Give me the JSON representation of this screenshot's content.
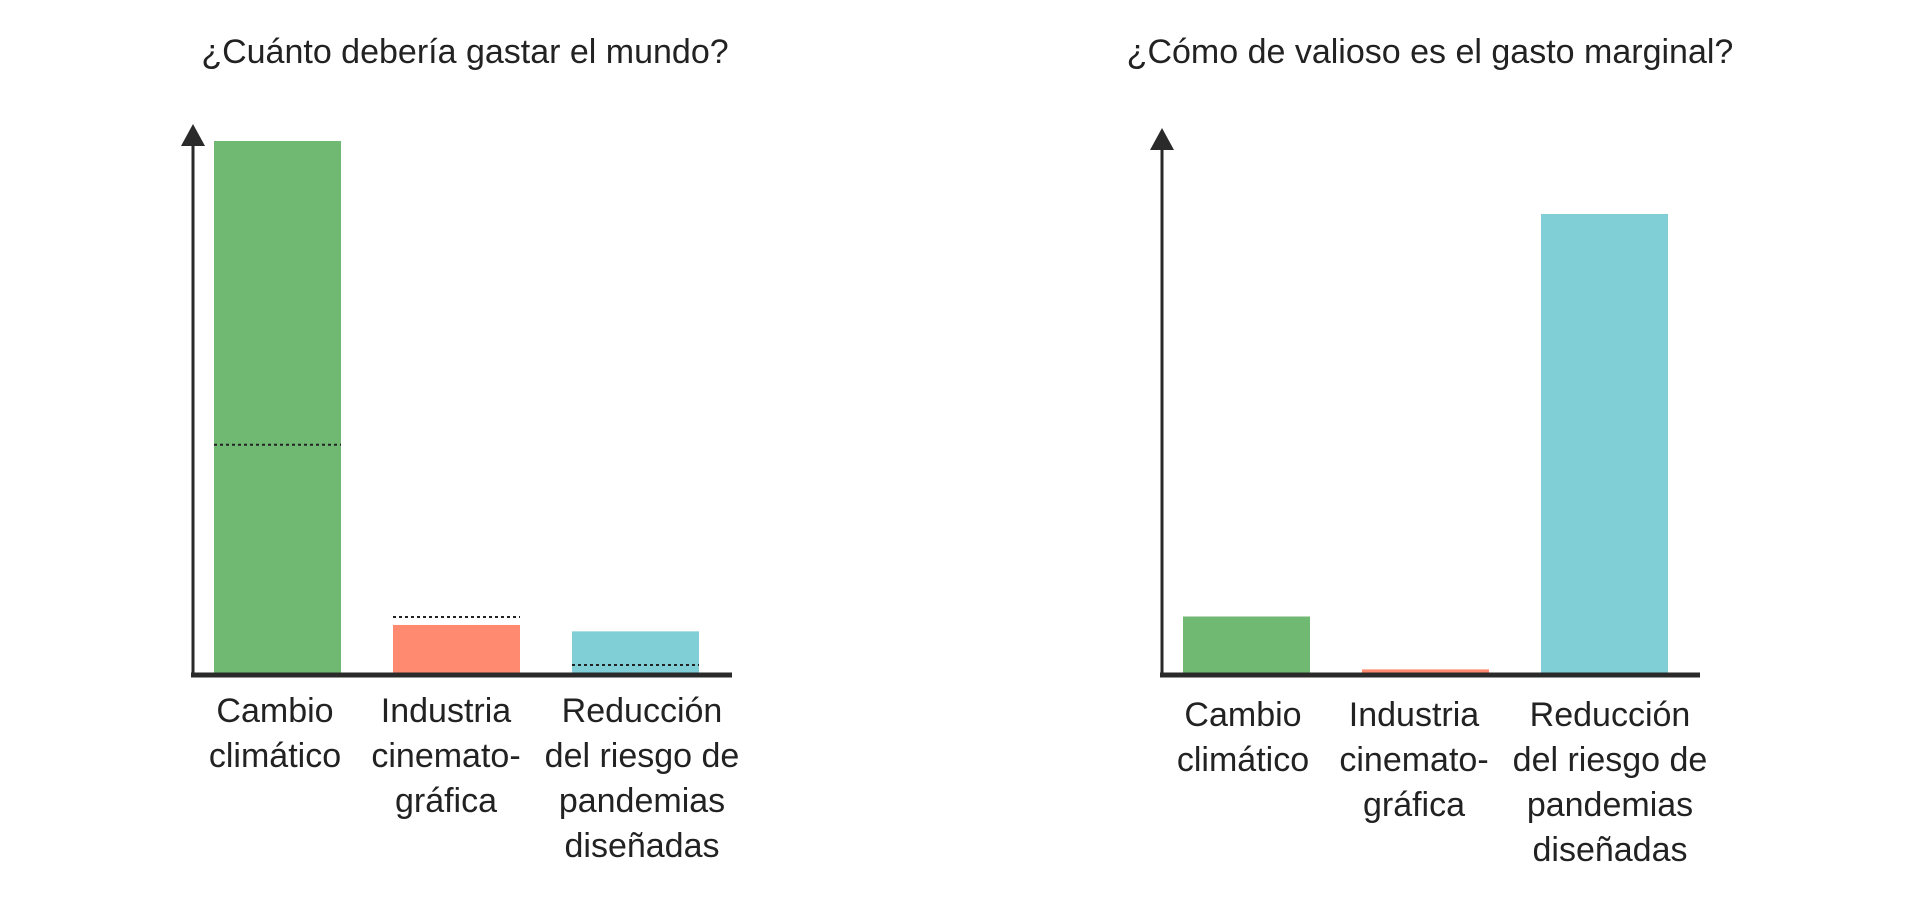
{
  "chart_data": [
    {
      "type": "bar",
      "title": "¿Cuánto debería gastar el mundo?",
      "categories": [
        [
          "Cambio",
          "climático"
        ],
        [
          "Industria",
          "cinemato-",
          "gráfica"
        ],
        [
          "Reducción",
          "del riesgo de",
          "pandemias",
          "diseñadas"
        ]
      ],
      "values": [
        100,
        9.2,
        8
      ],
      "reference_values": [
        43,
        10.7,
        1.7
      ],
      "reference_style": "dotted-line",
      "ylim": [
        0,
        100
      ],
      "axes": "left-and-bottom-arrow",
      "grid": false,
      "xlabel": "",
      "ylabel": "",
      "colors": [
        "#70b973",
        "#ff8a6f",
        "#80cfd7"
      ]
    },
    {
      "type": "bar",
      "title": "¿Cómo de valioso es el gasto marginal?",
      "categories": [
        [
          "Cambio",
          "climático"
        ],
        [
          "Industria",
          "cinemato-",
          "gráfica"
        ],
        [
          "Reducción",
          "del riesgo de",
          "pandemias",
          "diseñadas"
        ]
      ],
      "values": [
        12.5,
        1,
        100
      ],
      "ylim": [
        0,
        100
      ],
      "axes": "left-and-bottom-arrow",
      "grid": false,
      "xlabel": "",
      "ylabel": "",
      "colors": [
        "#70b973",
        "#ff8a6f",
        "#80cfd7"
      ]
    }
  ]
}
